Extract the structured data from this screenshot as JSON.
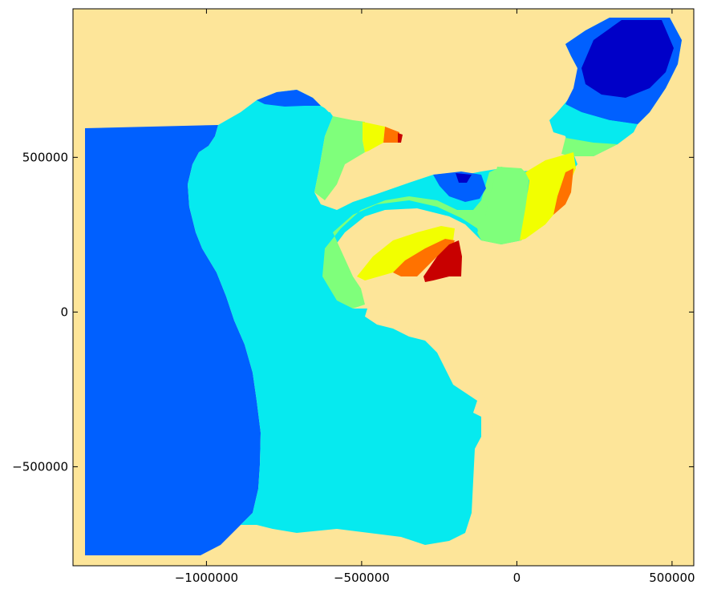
{
  "chart_data": {
    "type": "filled-contour-map",
    "xlim": [
      -1430000,
      570000
    ],
    "ylim": [
      -820000,
      980000
    ],
    "x_ticks": [
      {
        "value": -1000000,
        "label": "−1000000"
      },
      {
        "value": -500000,
        "label": "−500000"
      },
      {
        "value": 0,
        "label": "0"
      },
      {
        "value": 500000,
        "label": "500000"
      }
    ],
    "y_ticks": [
      {
        "value": 500000,
        "label": "500000"
      },
      {
        "value": 0,
        "label": "0"
      },
      {
        "value": -500000,
        "label": "−500000"
      }
    ],
    "colors": {
      "land": "#fde599",
      "deep_blue": "#0000c8",
      "blue": "#0060ff",
      "cyan": "#06eaef",
      "green": "#7fff7b",
      "yellow": "#f2ff00",
      "orange": "#ff7200",
      "red": "#c80000",
      "frame": "#000000"
    }
  }
}
